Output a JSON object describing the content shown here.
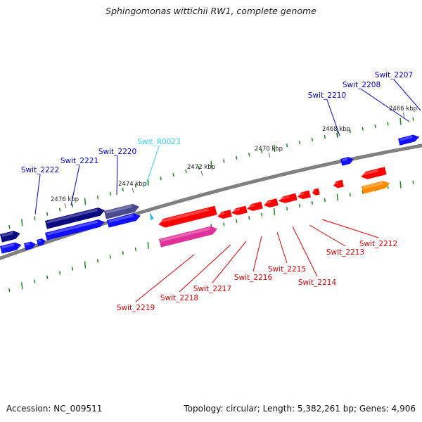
{
  "title": "Sphingomonas wittichii RW1, complete genome",
  "accession": "Accession: NC_009511",
  "summary": "Topology: circular; Length: 5,382,261 bp; Genes: 4,906",
  "colors": {
    "backbone": "#808080",
    "forward_gene": "#1010ff",
    "forward_gene_dark": "#0a0a80",
    "reverse_gene": "#ff0000",
    "reverse_gene_dark": "#c00000",
    "pink_track": "#e0309a",
    "orange_track": "#ff8c00",
    "rna": "#33bbee",
    "forward_label": "#0000cc",
    "reverse_label": "#dd0000",
    "rna_label": "#33ccee",
    "tick": "#1a8a1a"
  },
  "kbp_labels": [
    "2466 kbp",
    "2468 kbp",
    "2470 kbp",
    "2472 kbp",
    "2474 kbp",
    "2476 kbp"
  ],
  "genes_forward": [
    "Swit_2207",
    "Swit_2208",
    "Swit_2210",
    "Swit_2220",
    "Swit_2221",
    "Swit_2222"
  ],
  "rna_genes": [
    "Swit_R0023"
  ],
  "genes_reverse": [
    "Swit_2212",
    "Swit_2213",
    "Swit_2214",
    "Swit_2215",
    "Swit_2216",
    "Swit_2217",
    "Swit_2218",
    "Swit_2219"
  ]
}
